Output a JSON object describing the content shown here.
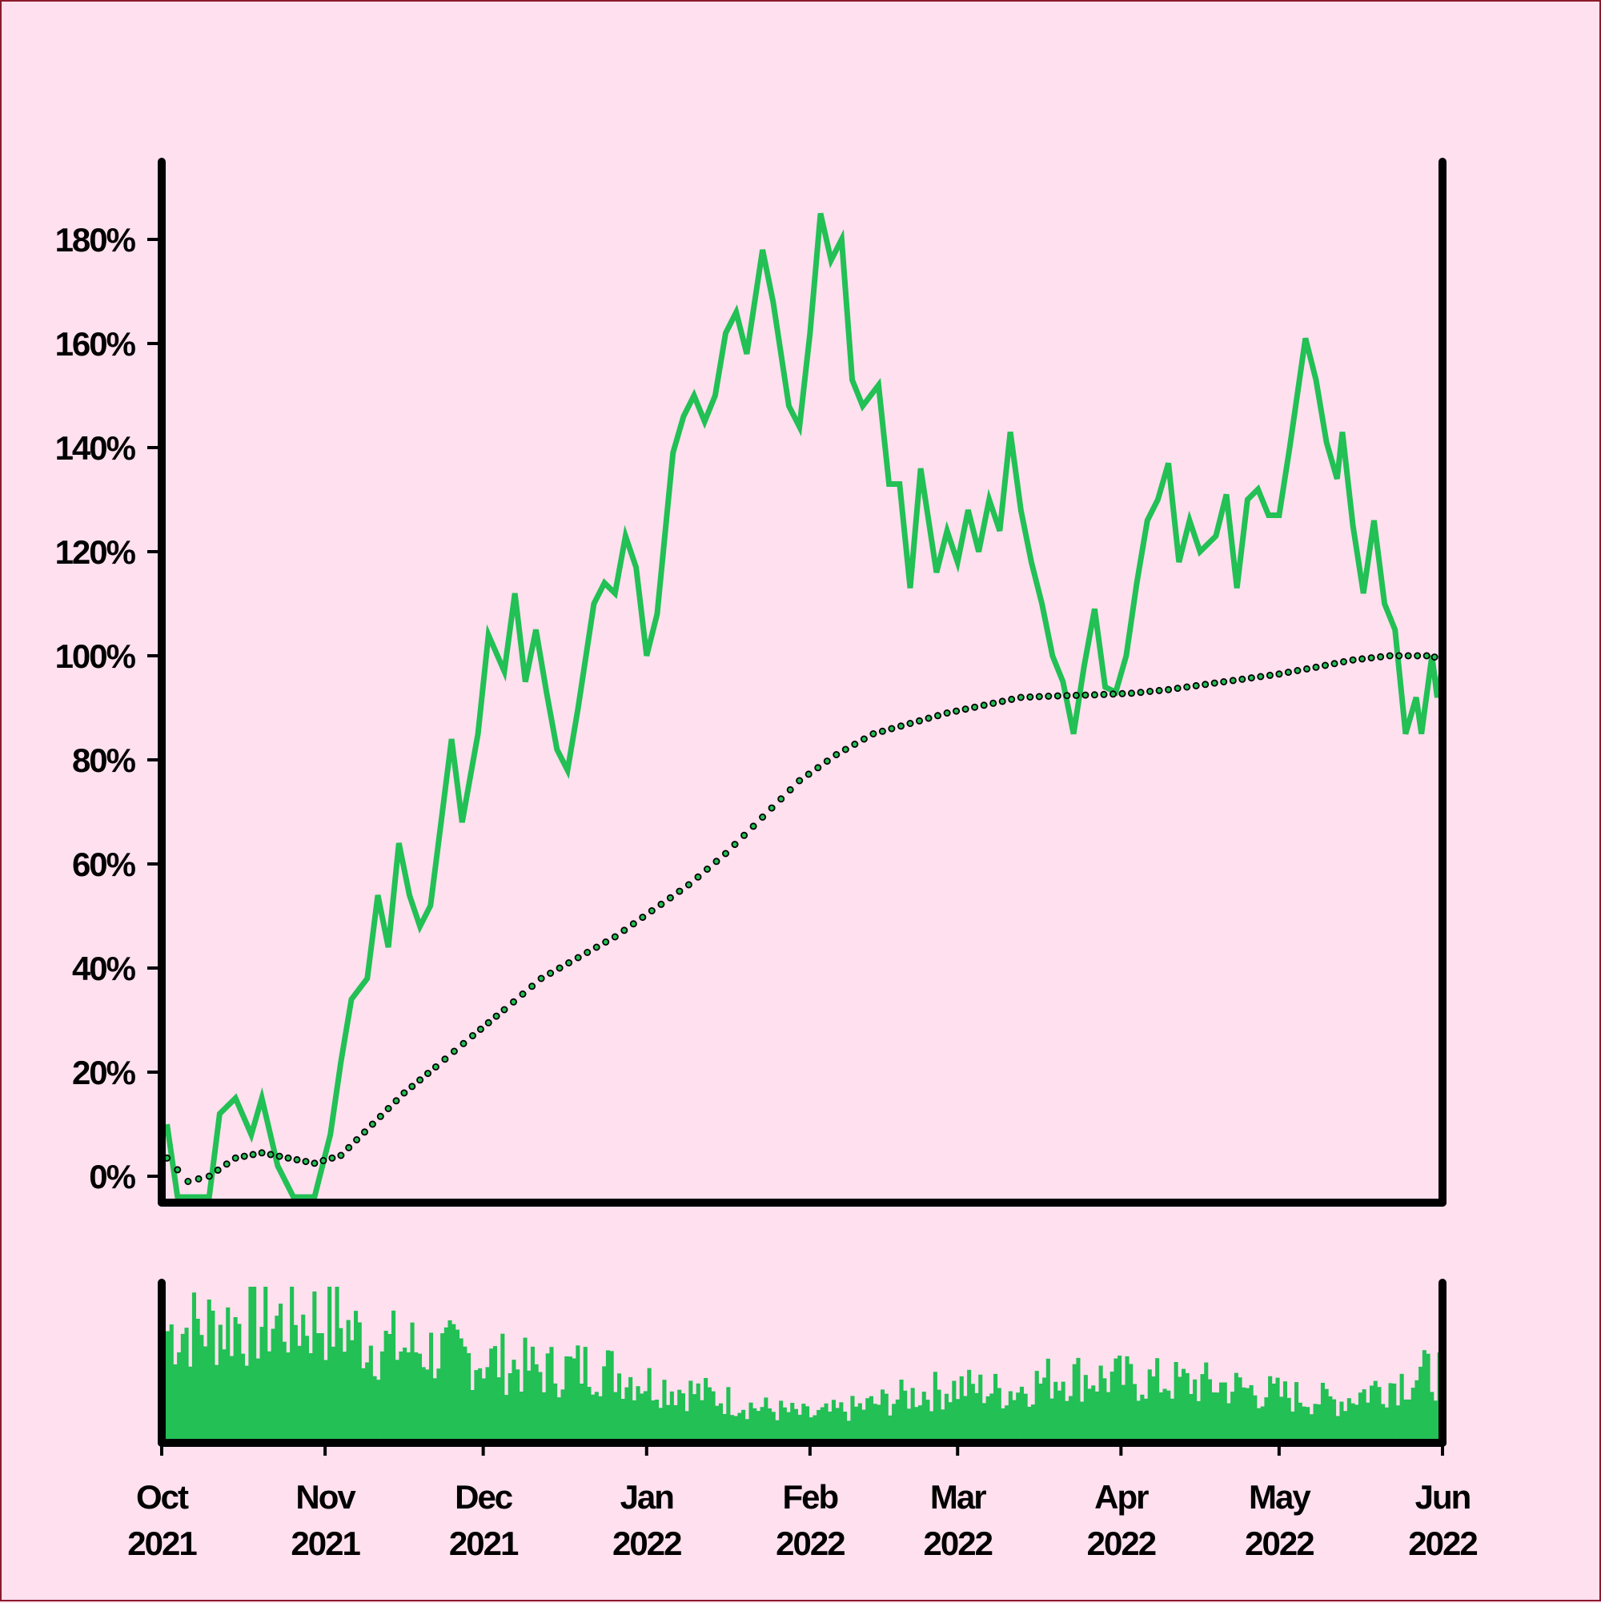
{
  "chart_data": {
    "type": "line",
    "title": "",
    "xlabel": "",
    "ylabel": "",
    "ylim": [
      -5,
      190
    ],
    "x_range": [
      "2021-10-01",
      "2022-06-01"
    ],
    "grid": false,
    "colors": {
      "line": "#22c055",
      "trend_marker": "#22c055",
      "background": "#ffe0ee",
      "axis": "#000000"
    },
    "y_ticks": [
      {
        "value": 0,
        "label": "0%"
      },
      {
        "value": 20,
        "label": "20%"
      },
      {
        "value": 40,
        "label": "40%"
      },
      {
        "value": 60,
        "label": "60%"
      },
      {
        "value": 80,
        "label": "80%"
      },
      {
        "value": 100,
        "label": "100%"
      },
      {
        "value": 120,
        "label": "120%"
      },
      {
        "value": 140,
        "label": "140%"
      },
      {
        "value": 160,
        "label": "160%"
      },
      {
        "value": 180,
        "label": "180%"
      }
    ],
    "x_ticks": [
      {
        "date": "2021-10-01",
        "month": "Oct",
        "year": "2021"
      },
      {
        "date": "2021-11-01",
        "month": "Nov",
        "year": "2021"
      },
      {
        "date": "2021-12-01",
        "month": "Dec",
        "year": "2021"
      },
      {
        "date": "2022-01-01",
        "month": "Jan",
        "year": "2022"
      },
      {
        "date": "2022-02-01",
        "month": "Feb",
        "year": "2022"
      },
      {
        "date": "2022-03-01",
        "month": "Mar",
        "year": "2022"
      },
      {
        "date": "2022-04-01",
        "month": "Apr",
        "year": "2022"
      },
      {
        "date": "2022-05-01",
        "month": "May",
        "year": "2022"
      },
      {
        "date": "2022-06-01",
        "month": "Jun",
        "year": "2022"
      }
    ],
    "series": [
      {
        "style": "solid line",
        "points": [
          [
            "2021-10-02",
            10
          ],
          [
            "2021-10-04",
            -4
          ],
          [
            "2021-10-07",
            -4
          ],
          [
            "2021-10-10",
            -4
          ],
          [
            "2021-10-12",
            12
          ],
          [
            "2021-10-15",
            15
          ],
          [
            "2021-10-18",
            8
          ],
          [
            "2021-10-20",
            15
          ],
          [
            "2021-10-23",
            2
          ],
          [
            "2021-10-26",
            -4
          ],
          [
            "2021-10-30",
            -4
          ],
          [
            "2021-11-02",
            8
          ],
          [
            "2021-11-04",
            22
          ],
          [
            "2021-11-06",
            34
          ],
          [
            "2021-11-09",
            38
          ],
          [
            "2021-11-11",
            54
          ],
          [
            "2021-11-13",
            44
          ],
          [
            "2021-11-15",
            64
          ],
          [
            "2021-11-17",
            54
          ],
          [
            "2021-11-19",
            48
          ],
          [
            "2021-11-21",
            52
          ],
          [
            "2021-11-23",
            68
          ],
          [
            "2021-11-25",
            84
          ],
          [
            "2021-11-27",
            68
          ],
          [
            "2021-11-30",
            85
          ],
          [
            "2021-12-02",
            104
          ],
          [
            "2021-12-05",
            97
          ],
          [
            "2021-12-07",
            112
          ],
          [
            "2021-12-09",
            95
          ],
          [
            "2021-12-11",
            105
          ],
          [
            "2021-12-13",
            93
          ],
          [
            "2021-12-15",
            82
          ],
          [
            "2021-12-17",
            78
          ],
          [
            "2021-12-19",
            90
          ],
          [
            "2021-12-22",
            110
          ],
          [
            "2021-12-24",
            114
          ],
          [
            "2021-12-26",
            112
          ],
          [
            "2021-12-28",
            123
          ],
          [
            "2021-12-30",
            117
          ],
          [
            "2022-01-01",
            100
          ],
          [
            "2022-01-03",
            108
          ],
          [
            "2022-01-06",
            139
          ],
          [
            "2022-01-08",
            146
          ],
          [
            "2022-01-10",
            150
          ],
          [
            "2022-01-12",
            145
          ],
          [
            "2022-01-14",
            150
          ],
          [
            "2022-01-16",
            162
          ],
          [
            "2022-01-18",
            166
          ],
          [
            "2022-01-20",
            158
          ],
          [
            "2022-01-23",
            178
          ],
          [
            "2022-01-25",
            168
          ],
          [
            "2022-01-28",
            148
          ],
          [
            "2022-01-30",
            144
          ],
          [
            "2022-02-01",
            162
          ],
          [
            "2022-02-03",
            185
          ],
          [
            "2022-02-05",
            176
          ],
          [
            "2022-02-07",
            180
          ],
          [
            "2022-02-09",
            153
          ],
          [
            "2022-02-11",
            148
          ],
          [
            "2022-02-14",
            152
          ],
          [
            "2022-02-16",
            133
          ],
          [
            "2022-02-18",
            133
          ],
          [
            "2022-02-20",
            113
          ],
          [
            "2022-02-22",
            136
          ],
          [
            "2022-02-25",
            116
          ],
          [
            "2022-02-27",
            124
          ],
          [
            "2022-03-01",
            118
          ],
          [
            "2022-03-03",
            128
          ],
          [
            "2022-03-05",
            120
          ],
          [
            "2022-03-07",
            130
          ],
          [
            "2022-03-09",
            124
          ],
          [
            "2022-03-11",
            143
          ],
          [
            "2022-03-13",
            128
          ],
          [
            "2022-03-15",
            118
          ],
          [
            "2022-03-17",
            110
          ],
          [
            "2022-03-19",
            100
          ],
          [
            "2022-03-21",
            95
          ],
          [
            "2022-03-23",
            85
          ],
          [
            "2022-03-25",
            98
          ],
          [
            "2022-03-27",
            109
          ],
          [
            "2022-03-29",
            94
          ],
          [
            "2022-03-31",
            93
          ],
          [
            "2022-04-02",
            100
          ],
          [
            "2022-04-04",
            114
          ],
          [
            "2022-04-06",
            126
          ],
          [
            "2022-04-08",
            130
          ],
          [
            "2022-04-10",
            137
          ],
          [
            "2022-04-12",
            118
          ],
          [
            "2022-04-14",
            126
          ],
          [
            "2022-04-16",
            120
          ],
          [
            "2022-04-19",
            123
          ],
          [
            "2022-04-21",
            131
          ],
          [
            "2022-04-23",
            113
          ],
          [
            "2022-04-25",
            130
          ],
          [
            "2022-04-27",
            132
          ],
          [
            "2022-04-29",
            127
          ],
          [
            "2022-05-01",
            127
          ],
          [
            "2022-05-03",
            140
          ],
          [
            "2022-05-05",
            154
          ],
          [
            "2022-05-06",
            161
          ],
          [
            "2022-05-08",
            153
          ],
          [
            "2022-05-10",
            141
          ],
          [
            "2022-05-12",
            134
          ],
          [
            "2022-05-13",
            143
          ],
          [
            "2022-05-15",
            125
          ],
          [
            "2022-05-17",
            112
          ],
          [
            "2022-05-19",
            126
          ],
          [
            "2022-05-21",
            110
          ],
          [
            "2022-05-23",
            105
          ],
          [
            "2022-05-25",
            85
          ],
          [
            "2022-05-27",
            92
          ],
          [
            "2022-05-28",
            85
          ],
          [
            "2022-05-30",
            100
          ],
          [
            "2022-05-31",
            92
          ],
          [
            "2022-06-01",
            98
          ]
        ]
      },
      {
        "style": "dotted trend markers",
        "points": [
          [
            "2021-10-02",
            3.5
          ],
          [
            "2021-10-06",
            -1
          ],
          [
            "2021-10-10",
            0
          ],
          [
            "2021-10-15",
            3.5
          ],
          [
            "2021-10-20",
            4.5
          ],
          [
            "2021-10-25",
            3.5
          ],
          [
            "2021-10-30",
            2.5
          ],
          [
            "2021-11-04",
            4
          ],
          [
            "2021-11-10",
            10
          ],
          [
            "2021-11-16",
            16
          ],
          [
            "2021-11-22",
            21
          ],
          [
            "2021-11-29",
            27
          ],
          [
            "2021-12-05",
            32
          ],
          [
            "2021-12-12",
            38
          ],
          [
            "2021-12-19",
            42
          ],
          [
            "2021-12-26",
            46
          ],
          [
            "2022-01-02",
            51
          ],
          [
            "2022-01-09",
            56
          ],
          [
            "2022-01-16",
            62
          ],
          [
            "2022-01-23",
            69
          ],
          [
            "2022-01-30",
            76
          ],
          [
            "2022-02-06",
            81
          ],
          [
            "2022-02-13",
            85
          ],
          [
            "2022-02-20",
            87
          ],
          [
            "2022-02-27",
            89
          ],
          [
            "2022-03-06",
            90.5
          ],
          [
            "2022-03-13",
            92
          ],
          [
            "2022-03-20",
            92.3
          ],
          [
            "2022-03-27",
            92.5
          ],
          [
            "2022-04-03",
            92.8
          ],
          [
            "2022-04-10",
            93.5
          ],
          [
            "2022-04-17",
            94.5
          ],
          [
            "2022-04-24",
            95.5
          ],
          [
            "2022-05-01",
            96.5
          ],
          [
            "2022-05-08",
            97.8
          ],
          [
            "2022-05-15",
            99.2
          ],
          [
            "2022-05-22",
            100
          ],
          [
            "2022-05-29",
            100
          ],
          [
            "2022-06-01",
            99.5
          ]
        ]
      }
    ],
    "volume_subplot": {
      "type": "bar",
      "ylim": [
        0,
        100
      ],
      "segments": [
        [
          "2021-10-01",
          70
        ],
        [
          "2021-10-15",
          75
        ],
        [
          "2021-11-01",
          78
        ],
        [
          "2021-11-10",
          62
        ],
        [
          "2021-11-20",
          58
        ],
        [
          "2021-12-01",
          52
        ],
        [
          "2021-12-12",
          45
        ],
        [
          "2021-12-22",
          48
        ],
        [
          "2022-01-01",
          38
        ],
        [
          "2022-01-12",
          30
        ],
        [
          "2022-01-22",
          22
        ],
        [
          "2022-02-01",
          17
        ],
        [
          "2022-02-10",
          22
        ],
        [
          "2022-02-20",
          30
        ],
        [
          "2022-03-01",
          35
        ],
        [
          "2022-03-10",
          32
        ],
        [
          "2022-03-20",
          42
        ],
        [
          "2022-04-01",
          40
        ],
        [
          "2022-04-10",
          38
        ],
        [
          "2022-04-20",
          36
        ],
        [
          "2022-05-01",
          30
        ],
        [
          "2022-05-12",
          26
        ],
        [
          "2022-05-22",
          38
        ],
        [
          "2022-06-01",
          45
        ]
      ]
    }
  }
}
